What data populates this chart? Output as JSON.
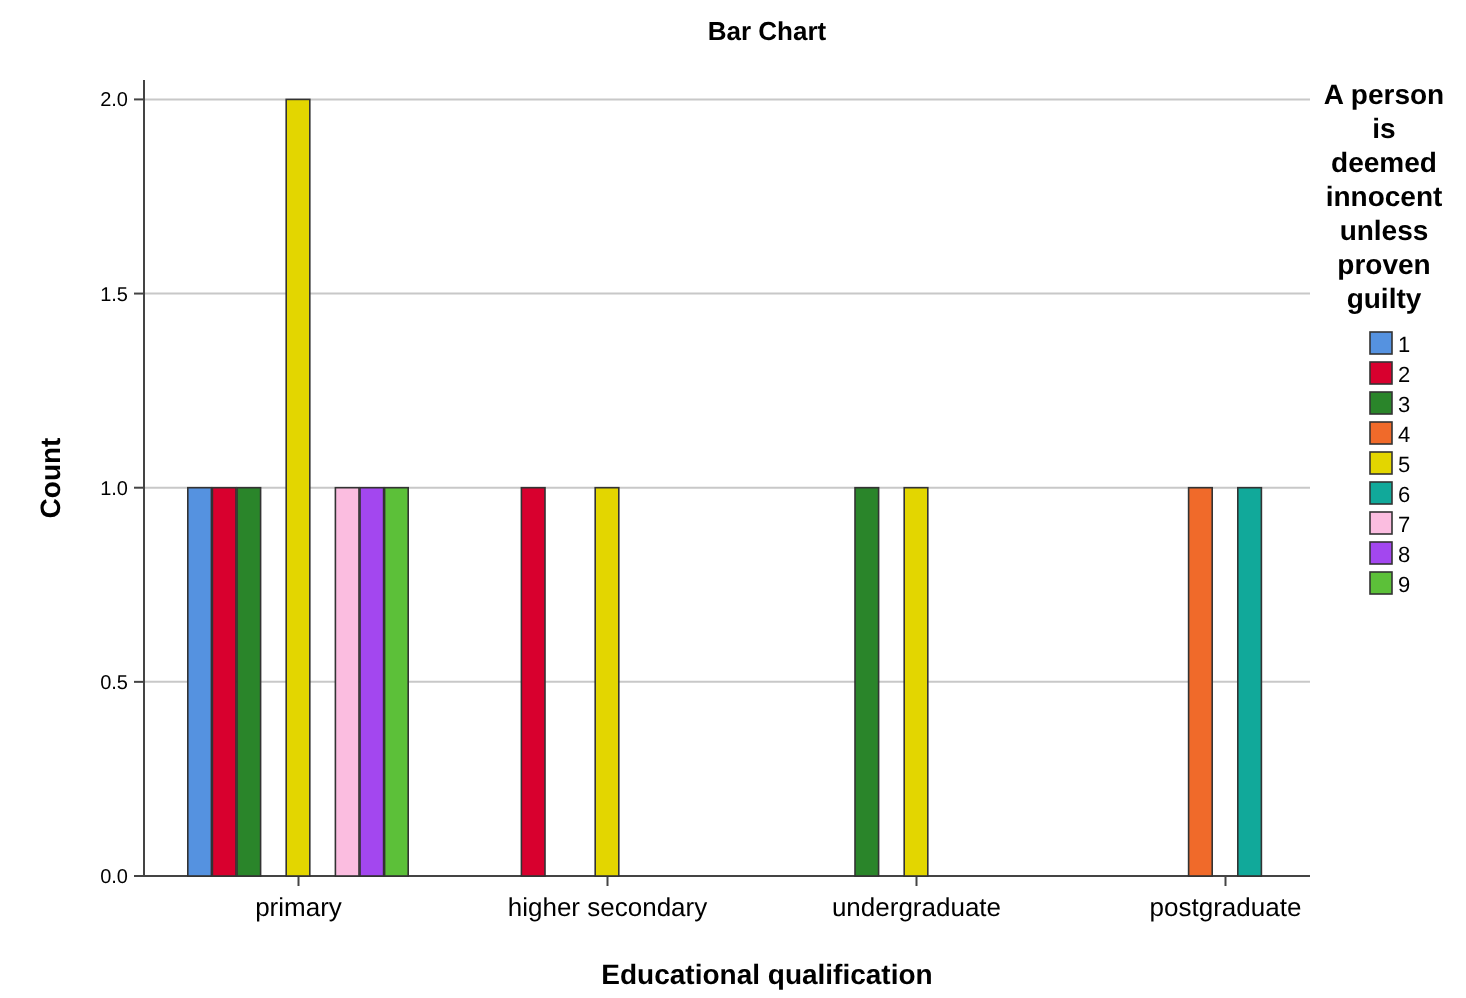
{
  "chart_data": {
    "type": "bar",
    "title": "Bar Chart",
    "xlabel": "Educational qualification",
    "ylabel": "Count",
    "legend_title": "A person is deemed innocent unless proven guilty",
    "categories": [
      "primary",
      "higher secondary",
      "undergraduate",
      "postgraduate"
    ],
    "series": [
      {
        "name": "1",
        "color": "#5592e0",
        "values": [
          1,
          null,
          null,
          null
        ]
      },
      {
        "name": "2",
        "color": "#d8002e",
        "values": [
          1,
          1,
          null,
          null
        ]
      },
      {
        "name": "3",
        "color": "#2a852a",
        "values": [
          1,
          null,
          1,
          null
        ]
      },
      {
        "name": "4",
        "color": "#f06a2a",
        "values": [
          null,
          null,
          null,
          1
        ]
      },
      {
        "name": "5",
        "color": "#e3d600",
        "values": [
          2,
          1,
          1,
          null
        ]
      },
      {
        "name": "6",
        "color": "#11a99a",
        "values": [
          null,
          null,
          null,
          1
        ]
      },
      {
        "name": "7",
        "color": "#fbbde0",
        "values": [
          1,
          null,
          null,
          null
        ]
      },
      {
        "name": "8",
        "color": "#a347ef",
        "values": [
          1,
          null,
          null,
          null
        ]
      },
      {
        "name": "9",
        "color": "#5cc039",
        "values": [
          1,
          null,
          null,
          null
        ]
      }
    ],
    "ylim": [
      0,
      2.05
    ],
    "yticks": [
      {
        "value": 0,
        "label": "0.0"
      },
      {
        "value": 0.5,
        "label": "0.5"
      },
      {
        "value": 1,
        "label": "1.0"
      },
      {
        "value": 1.5,
        "label": "1.5"
      },
      {
        "value": 2,
        "label": "2.0"
      }
    ],
    "grid": "y",
    "legend": "right"
  }
}
